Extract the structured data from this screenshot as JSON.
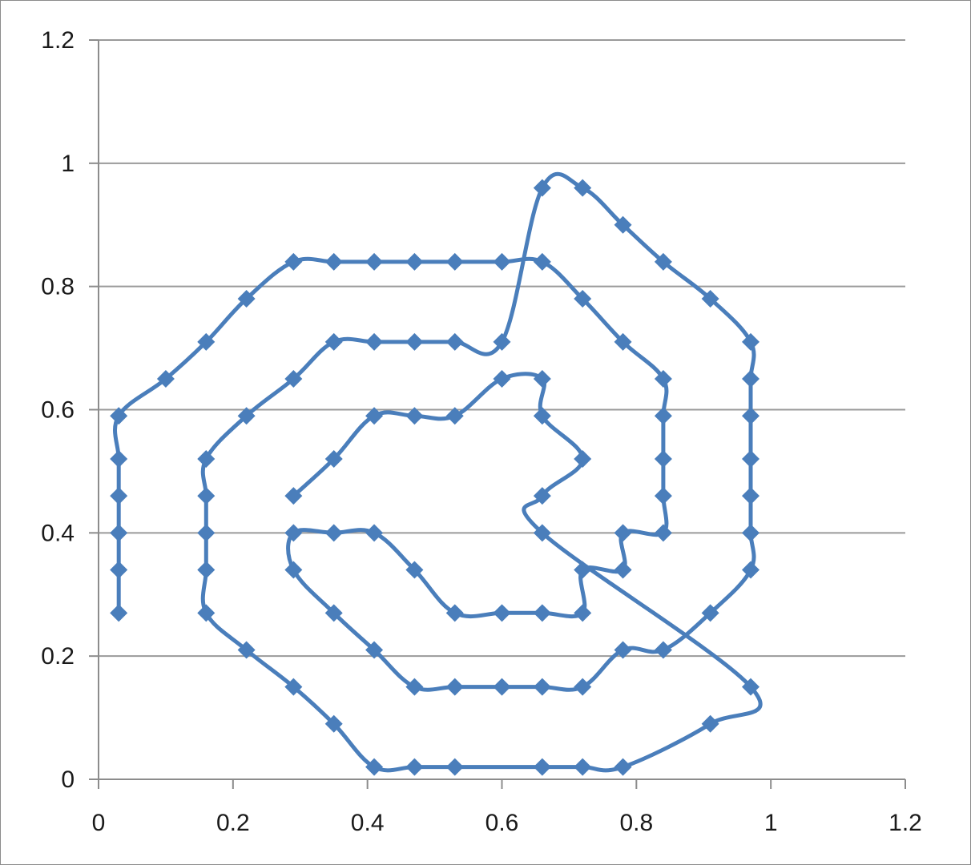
{
  "chart_data": {
    "type": "scatter",
    "title": "",
    "xlabel": "",
    "ylabel": "",
    "xlim": [
      0,
      1.2
    ],
    "ylim": [
      0,
      1.2
    ],
    "x_ticks": [
      "0",
      "0.2",
      "0.4",
      "0.6",
      "0.8",
      "1",
      "1.2"
    ],
    "y_ticks": [
      "0",
      "0.2",
      "0.4",
      "0.6",
      "0.8",
      "1",
      "1.2"
    ],
    "grid": "horizontal",
    "legend": "none",
    "series_color": "#4a7ebb",
    "markers": "diamond",
    "line_style": "smoothed",
    "series": [
      {
        "points": [
          [
            0.03,
            0.27
          ],
          [
            0.03,
            0.34
          ],
          [
            0.03,
            0.4
          ],
          [
            0.03,
            0.46
          ],
          [
            0.03,
            0.52
          ],
          [
            0.03,
            0.59
          ],
          [
            0.1,
            0.65
          ],
          [
            0.16,
            0.71
          ],
          [
            0.22,
            0.78
          ],
          [
            0.29,
            0.84
          ],
          [
            0.35,
            0.84
          ],
          [
            0.41,
            0.84
          ],
          [
            0.47,
            0.84
          ],
          [
            0.53,
            0.84
          ],
          [
            0.6,
            0.84
          ],
          [
            0.66,
            0.84
          ],
          [
            0.72,
            0.78
          ],
          [
            0.78,
            0.71
          ],
          [
            0.84,
            0.65
          ],
          [
            0.84,
            0.59
          ],
          [
            0.84,
            0.52
          ],
          [
            0.84,
            0.46
          ],
          [
            0.84,
            0.4
          ],
          [
            0.78,
            0.4
          ],
          [
            0.78,
            0.34
          ],
          [
            0.72,
            0.34
          ],
          [
            0.72,
            0.27
          ],
          [
            0.66,
            0.27
          ],
          [
            0.6,
            0.27
          ],
          [
            0.53,
            0.27
          ],
          [
            0.47,
            0.34
          ],
          [
            0.41,
            0.4
          ],
          [
            0.35,
            0.4
          ],
          [
            0.29,
            0.4
          ],
          [
            0.29,
            0.34
          ],
          [
            0.35,
            0.27
          ],
          [
            0.41,
            0.21
          ],
          [
            0.47,
            0.15
          ],
          [
            0.53,
            0.15
          ],
          [
            0.6,
            0.15
          ],
          [
            0.66,
            0.15
          ],
          [
            0.72,
            0.15
          ],
          [
            0.78,
            0.21
          ],
          [
            0.84,
            0.21
          ],
          [
            0.91,
            0.27
          ],
          [
            0.97,
            0.34
          ],
          [
            0.97,
            0.4
          ],
          [
            0.97,
            0.46
          ],
          [
            0.97,
            0.52
          ],
          [
            0.97,
            0.59
          ],
          [
            0.97,
            0.65
          ],
          [
            0.97,
            0.71
          ],
          [
            0.91,
            0.78
          ],
          [
            0.84,
            0.84
          ],
          [
            0.78,
            0.9
          ],
          [
            0.72,
            0.96
          ],
          [
            0.66,
            0.96
          ],
          [
            0.6,
            0.71
          ],
          [
            0.53,
            0.71
          ],
          [
            0.47,
            0.71
          ],
          [
            0.41,
            0.71
          ],
          [
            0.35,
            0.71
          ],
          [
            0.29,
            0.65
          ],
          [
            0.22,
            0.59
          ],
          [
            0.16,
            0.52
          ],
          [
            0.16,
            0.46
          ],
          [
            0.16,
            0.4
          ],
          [
            0.16,
            0.34
          ],
          [
            0.16,
            0.27
          ],
          [
            0.22,
            0.21
          ],
          [
            0.29,
            0.15
          ],
          [
            0.35,
            0.09
          ],
          [
            0.41,
            0.02
          ],
          [
            0.47,
            0.02
          ],
          [
            0.53,
            0.02
          ],
          [
            0.66,
            0.02
          ],
          [
            0.72,
            0.02
          ],
          [
            0.78,
            0.02
          ],
          [
            0.91,
            0.09
          ],
          [
            0.97,
            0.15
          ],
          [
            0.66,
            0.4
          ],
          [
            0.66,
            0.46
          ],
          [
            0.72,
            0.52
          ],
          [
            0.66,
            0.59
          ],
          [
            0.66,
            0.65
          ],
          [
            0.6,
            0.65
          ],
          [
            0.53,
            0.59
          ],
          [
            0.47,
            0.59
          ],
          [
            0.41,
            0.59
          ],
          [
            0.35,
            0.52
          ],
          [
            0.29,
            0.46
          ]
        ]
      }
    ]
  }
}
